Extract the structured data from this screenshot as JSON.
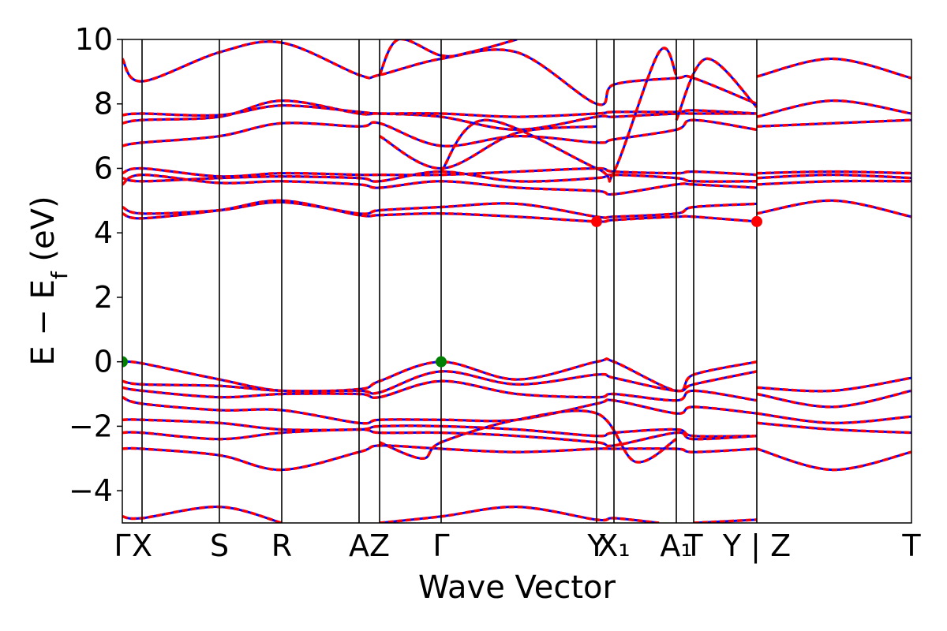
{
  "chart_data": {
    "type": "line",
    "title": "",
    "xlabel": "Wave Vector",
    "ylabel": "E − E_f (eV)",
    "ylabel_main": "E − E",
    "ylabel_sub": "f",
    "ylabel_units": " (eV)",
    "ylim": [
      -5,
      10
    ],
    "xlim": [
      0,
      1
    ],
    "y_ticks": [
      -4,
      -2,
      0,
      2,
      4,
      6,
      8,
      10
    ],
    "y_tick_labels": [
      "−4",
      "−2",
      "0",
      "2",
      "4",
      "6",
      "8",
      "10"
    ],
    "grid": false,
    "legend": "none",
    "x_ticks": [
      {
        "label": "Γ",
        "pos": 0.0
      },
      {
        "label": "X",
        "pos": 0.025
      },
      {
        "label": "S",
        "pos": 0.123
      },
      {
        "label": "R",
        "pos": 0.202
      },
      {
        "label": "A",
        "pos": 0.3
      },
      {
        "label": "Z",
        "pos": 0.326
      },
      {
        "label": "Γ",
        "pos": 0.404
      },
      {
        "label": "Y",
        "pos": 0.601
      },
      {
        "label": "X₁",
        "pos": 0.623
      },
      {
        "label": "A₁",
        "pos": 0.702
      },
      {
        "label": "T",
        "pos": 0.724
      },
      {
        "label": "Y | Z",
        "pos": 0.804
      },
      {
        "label": "T",
        "pos": 1.0
      }
    ],
    "gap_markers": {
      "vbm": [
        {
          "x": 0.0,
          "y": 0.0
        },
        {
          "x": 0.404,
          "y": 0.0
        }
      ],
      "cbm": [
        {
          "x": 0.601,
          "y": 4.35
        },
        {
          "x": 0.804,
          "y": 4.35
        }
      ]
    },
    "series": [
      {
        "x": [
          0.0,
          0.025,
          0.123,
          0.202,
          0.3,
          0.326,
          0.404,
          0.5,
          0.601,
          0.623,
          0.702,
          0.724,
          0.804
        ],
        "y": [
          0.0,
          -0.05,
          -0.55,
          -0.9,
          -0.85,
          -0.6,
          0.0,
          -0.55,
          0.0,
          0.0,
          -0.9,
          -0.4,
          0.0
        ]
      },
      {
        "x": [
          0.0,
          0.025,
          0.123,
          0.202,
          0.3,
          0.326,
          0.404,
          0.5,
          0.601,
          0.623,
          0.702,
          0.724,
          0.804
        ],
        "y": [
          -0.6,
          -0.7,
          -0.75,
          -0.9,
          -0.9,
          -0.95,
          -0.3,
          -0.7,
          -0.4,
          -0.5,
          -0.9,
          -0.7,
          -0.3
        ]
      },
      {
        "x": [
          0.804,
          0.9,
          1.0
        ],
        "y": [
          -0.8,
          -0.9,
          -0.5
        ]
      },
      {
        "x": [
          0.0,
          0.025,
          0.123,
          0.202,
          0.3,
          0.326,
          0.404,
          0.5,
          0.601,
          0.623,
          0.702,
          0.724,
          0.804
        ],
        "y": [
          -0.8,
          -0.9,
          -1.1,
          -1.0,
          -1.0,
          -1.1,
          -0.6,
          -1.0,
          -1.1,
          -1.0,
          -1.2,
          -0.9,
          -1.2
        ]
      },
      {
        "x": [
          0.804,
          0.9,
          1.0
        ],
        "y": [
          -1.0,
          -1.4,
          -0.9
        ]
      },
      {
        "x": [
          0.0,
          0.025,
          0.123,
          0.202,
          0.3,
          0.326,
          0.404,
          0.5,
          0.601,
          0.623,
          0.702,
          0.724,
          0.804
        ],
        "y": [
          -1.1,
          -1.3,
          -1.5,
          -1.5,
          -1.9,
          -1.8,
          -1.8,
          -1.8,
          -1.3,
          -1.2,
          -1.6,
          -1.4,
          -1.6
        ]
      },
      {
        "x": [
          0.804,
          0.9,
          1.0
        ],
        "y": [
          -1.6,
          -1.9,
          -1.7
        ]
      },
      {
        "x": [
          0.0,
          0.025,
          0.123,
          0.202,
          0.3,
          0.326,
          0.404,
          0.5,
          0.601,
          0.623,
          0.702,
          0.724,
          0.804
        ],
        "y": [
          -1.8,
          -1.8,
          -1.9,
          -2.1,
          -2.1,
          -2.0,
          -2.0,
          -2.1,
          -2.3,
          -2.2,
          -2.1,
          -2.3,
          -2.3
        ]
      },
      {
        "x": [
          0.804,
          0.9,
          1.0
        ],
        "y": [
          -1.9,
          -2.1,
          -2.2
        ]
      },
      {
        "x": [
          0.0,
          0.025,
          0.123,
          0.202,
          0.3,
          0.326,
          0.404,
          0.5,
          0.601,
          0.623,
          0.702,
          0.724,
          0.804
        ],
        "y": [
          -2.2,
          -2.2,
          -2.4,
          -2.2,
          -2.1,
          -2.2,
          -2.2,
          -2.3,
          -2.5,
          -2.6,
          -2.2,
          -2.4,
          -2.3
        ]
      },
      {
        "x": [
          0.0,
          0.025,
          0.123,
          0.202,
          0.3,
          0.326,
          0.404,
          0.5,
          0.601,
          0.623,
          0.702,
          0.724,
          0.804
        ],
        "y": [
          -2.7,
          -2.7,
          -2.9,
          -3.35,
          -2.8,
          -2.6,
          -2.7,
          -2.8,
          -2.7,
          -2.7,
          -2.7,
          -2.8,
          -2.7
        ]
      },
      {
        "x": [
          0.804,
          0.9,
          1.0
        ],
        "y": [
          -2.7,
          -3.35,
          -2.8
        ]
      },
      {
        "x": [
          0.326,
          0.38,
          0.404,
          0.5,
          0.601,
          0.65,
          0.702
        ],
        "y": [
          -2.5,
          -3.0,
          -2.5,
          -1.8,
          -1.6,
          -3.1,
          -2.4
        ]
      },
      {
        "x": [
          0.0,
          0.025,
          0.123,
          0.202
        ],
        "y": [
          -4.8,
          -4.85,
          -4.5,
          -5.0
        ]
      },
      {
        "x": [
          0.326,
          0.404,
          0.5,
          0.601,
          0.623,
          0.68
        ],
        "y": [
          -5.0,
          -4.8,
          -4.5,
          -4.9,
          -4.85,
          -5.0
        ]
      },
      {
        "x": [
          0.724,
          0.804
        ],
        "y": [
          -5.0,
          -4.9
        ]
      },
      {
        "x": [
          0.0,
          0.025,
          0.123,
          0.202,
          0.3,
          0.326,
          0.404,
          0.5,
          0.601,
          0.623,
          0.702,
          0.724,
          0.804
        ],
        "y": [
          4.6,
          4.45,
          4.7,
          5.0,
          4.55,
          4.55,
          4.6,
          4.5,
          4.35,
          4.4,
          4.5,
          4.5,
          4.35
        ]
      },
      {
        "x": [
          0.804,
          0.9,
          1.0
        ],
        "y": [
          4.6,
          5.0,
          4.5
        ]
      },
      {
        "x": [
          0.0,
          0.025,
          0.123,
          0.202,
          0.3,
          0.326,
          0.404,
          0.5,
          0.601,
          0.623,
          0.702,
          0.724,
          0.804
        ],
        "y": [
          4.8,
          4.6,
          4.7,
          4.95,
          4.6,
          4.7,
          4.8,
          4.9,
          4.5,
          4.5,
          4.6,
          4.8,
          4.9
        ]
      },
      {
        "x": [
          0.0,
          0.025,
          0.123,
          0.202,
          0.3,
          0.326,
          0.404,
          0.5,
          0.601,
          0.623,
          0.702,
          0.724,
          0.804
        ],
        "y": [
          5.5,
          5.8,
          5.55,
          5.6,
          5.5,
          5.4,
          5.6,
          5.4,
          5.3,
          5.2,
          5.5,
          5.5,
          5.4
        ]
      },
      {
        "x": [
          0.804,
          0.9,
          1.0
        ],
        "y": [
          5.5,
          5.6,
          5.6
        ]
      },
      {
        "x": [
          0.0,
          0.025,
          0.123,
          0.202,
          0.3,
          0.326,
          0.404,
          0.5,
          0.601,
          0.623,
          0.702,
          0.724,
          0.804
        ],
        "y": [
          5.7,
          5.6,
          5.7,
          5.75,
          5.7,
          5.6,
          5.9,
          5.6,
          5.7,
          5.8,
          5.7,
          5.6,
          5.6
        ]
      },
      {
        "x": [
          0.804,
          0.9,
          1.0
        ],
        "y": [
          5.7,
          5.8,
          5.7
        ]
      },
      {
        "x": [
          0.0,
          0.025,
          0.123,
          0.202,
          0.3,
          0.326,
          0.404,
          0.5,
          0.601,
          0.623,
          0.702,
          0.724,
          0.804
        ],
        "y": [
          5.85,
          6.0,
          5.75,
          5.85,
          5.8,
          5.8,
          5.8,
          5.9,
          6.0,
          5.9,
          5.85,
          5.9,
          5.8
        ]
      },
      {
        "x": [
          0.804,
          0.9,
          1.0
        ],
        "y": [
          5.85,
          5.9,
          5.85
        ]
      },
      {
        "x": [
          0.0,
          0.025,
          0.123,
          0.202,
          0.3,
          0.326,
          0.404,
          0.5,
          0.601,
          0.623,
          0.702,
          0.724,
          0.804
        ],
        "y": [
          6.7,
          6.8,
          7.0,
          7.4,
          7.3,
          7.4,
          6.7,
          7.0,
          6.8,
          6.9,
          7.2,
          7.5,
          7.2
        ]
      },
      {
        "x": [
          0.804,
          0.9,
          1.0
        ],
        "y": [
          7.3,
          7.4,
          7.5
        ]
      },
      {
        "x": [
          0.0,
          0.025,
          0.123,
          0.202,
          0.3,
          0.326,
          0.404,
          0.5,
          0.601,
          0.623,
          0.702,
          0.724,
          0.804
        ],
        "y": [
          7.4,
          7.5,
          7.6,
          8.1,
          7.7,
          7.7,
          7.6,
          7.2,
          7.6,
          7.6,
          7.7,
          7.7,
          7.7
        ]
      },
      {
        "x": [
          0.804,
          0.9,
          1.0
        ],
        "y": [
          7.6,
          8.1,
          7.7
        ]
      },
      {
        "x": [
          0.0,
          0.025,
          0.123,
          0.202,
          0.3,
          0.326,
          0.404,
          0.5,
          0.601,
          0.623,
          0.702,
          0.724,
          0.804
        ],
        "y": [
          7.65,
          7.7,
          7.65,
          7.95,
          7.75,
          7.7,
          7.7,
          7.6,
          7.7,
          7.75,
          7.75,
          7.8,
          7.7
        ]
      },
      {
        "x": [
          0.0,
          0.025,
          0.123,
          0.202,
          0.3,
          0.326,
          0.404,
          0.5,
          0.601,
          0.623,
          0.702,
          0.724,
          0.804
        ],
        "y": [
          9.4,
          8.7,
          9.6,
          9.9,
          8.9,
          8.9,
          9.4,
          9.6,
          8.0,
          8.6,
          8.8,
          8.8,
          8.0
        ]
      },
      {
        "x": [
          0.804,
          0.9,
          1.0
        ],
        "y": [
          8.85,
          9.4,
          8.8
        ]
      },
      {
        "x": [
          0.326,
          0.35,
          0.404,
          0.44,
          0.5
        ],
        "y": [
          8.9,
          10.0,
          9.5,
          9.6,
          10.0
        ]
      },
      {
        "x": [
          0.404,
          0.46,
          0.601,
          0.623,
          0.68,
          0.702
        ],
        "y": [
          5.9,
          7.5,
          6.0,
          5.9,
          9.6,
          8.9
        ]
      },
      {
        "x": [
          0.326,
          0.404,
          0.5,
          0.601
        ],
        "y": [
          7.0,
          6.0,
          7.1,
          7.3
        ]
      },
      {
        "x": [
          0.702,
          0.74,
          0.804
        ],
        "y": [
          7.5,
          9.4,
          7.9
        ]
      }
    ]
  }
}
